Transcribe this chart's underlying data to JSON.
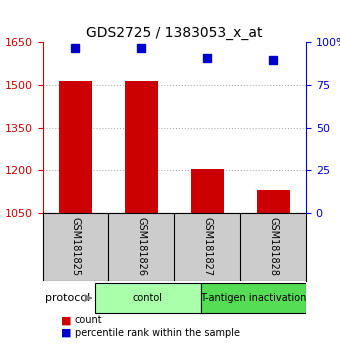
{
  "title": "GDS2725 / 1383053_x_at",
  "samples": [
    "GSM181825",
    "GSM181826",
    "GSM181827",
    "GSM181828"
  ],
  "bar_values": [
    1515,
    1515,
    1205,
    1130
  ],
  "bar_bottom": 1050,
  "bar_color": "#cc0000",
  "percentile_values": [
    97,
    97,
    91,
    90
  ],
  "percentile_color": "#0000cc",
  "left_ylim": [
    1050,
    1650
  ],
  "left_yticks": [
    1050,
    1200,
    1350,
    1500,
    1650
  ],
  "right_ylim": [
    0,
    100
  ],
  "right_yticks": [
    0,
    25,
    50,
    75,
    100
  ],
  "right_yticklabels": [
    "0",
    "25",
    "50",
    "75",
    "100%"
  ],
  "left_tick_color": "#cc0000",
  "right_tick_color": "#0000cc",
  "grid_color": "#000000",
  "grid_alpha": 0.3,
  "group_labels": [
    "contol",
    "T-antigen inactivation"
  ],
  "group_ranges": [
    [
      0,
      2
    ],
    [
      2,
      4
    ]
  ],
  "group_colors": [
    "#aaffaa",
    "#55dd55"
  ],
  "protocol_label": "protocol",
  "legend_count_label": "count",
  "legend_percentile_label": "percentile rank within the sample",
  "bg_color": "#ffffff",
  "plot_bg_color": "#ffffff",
  "sample_box_color": "#cccccc"
}
